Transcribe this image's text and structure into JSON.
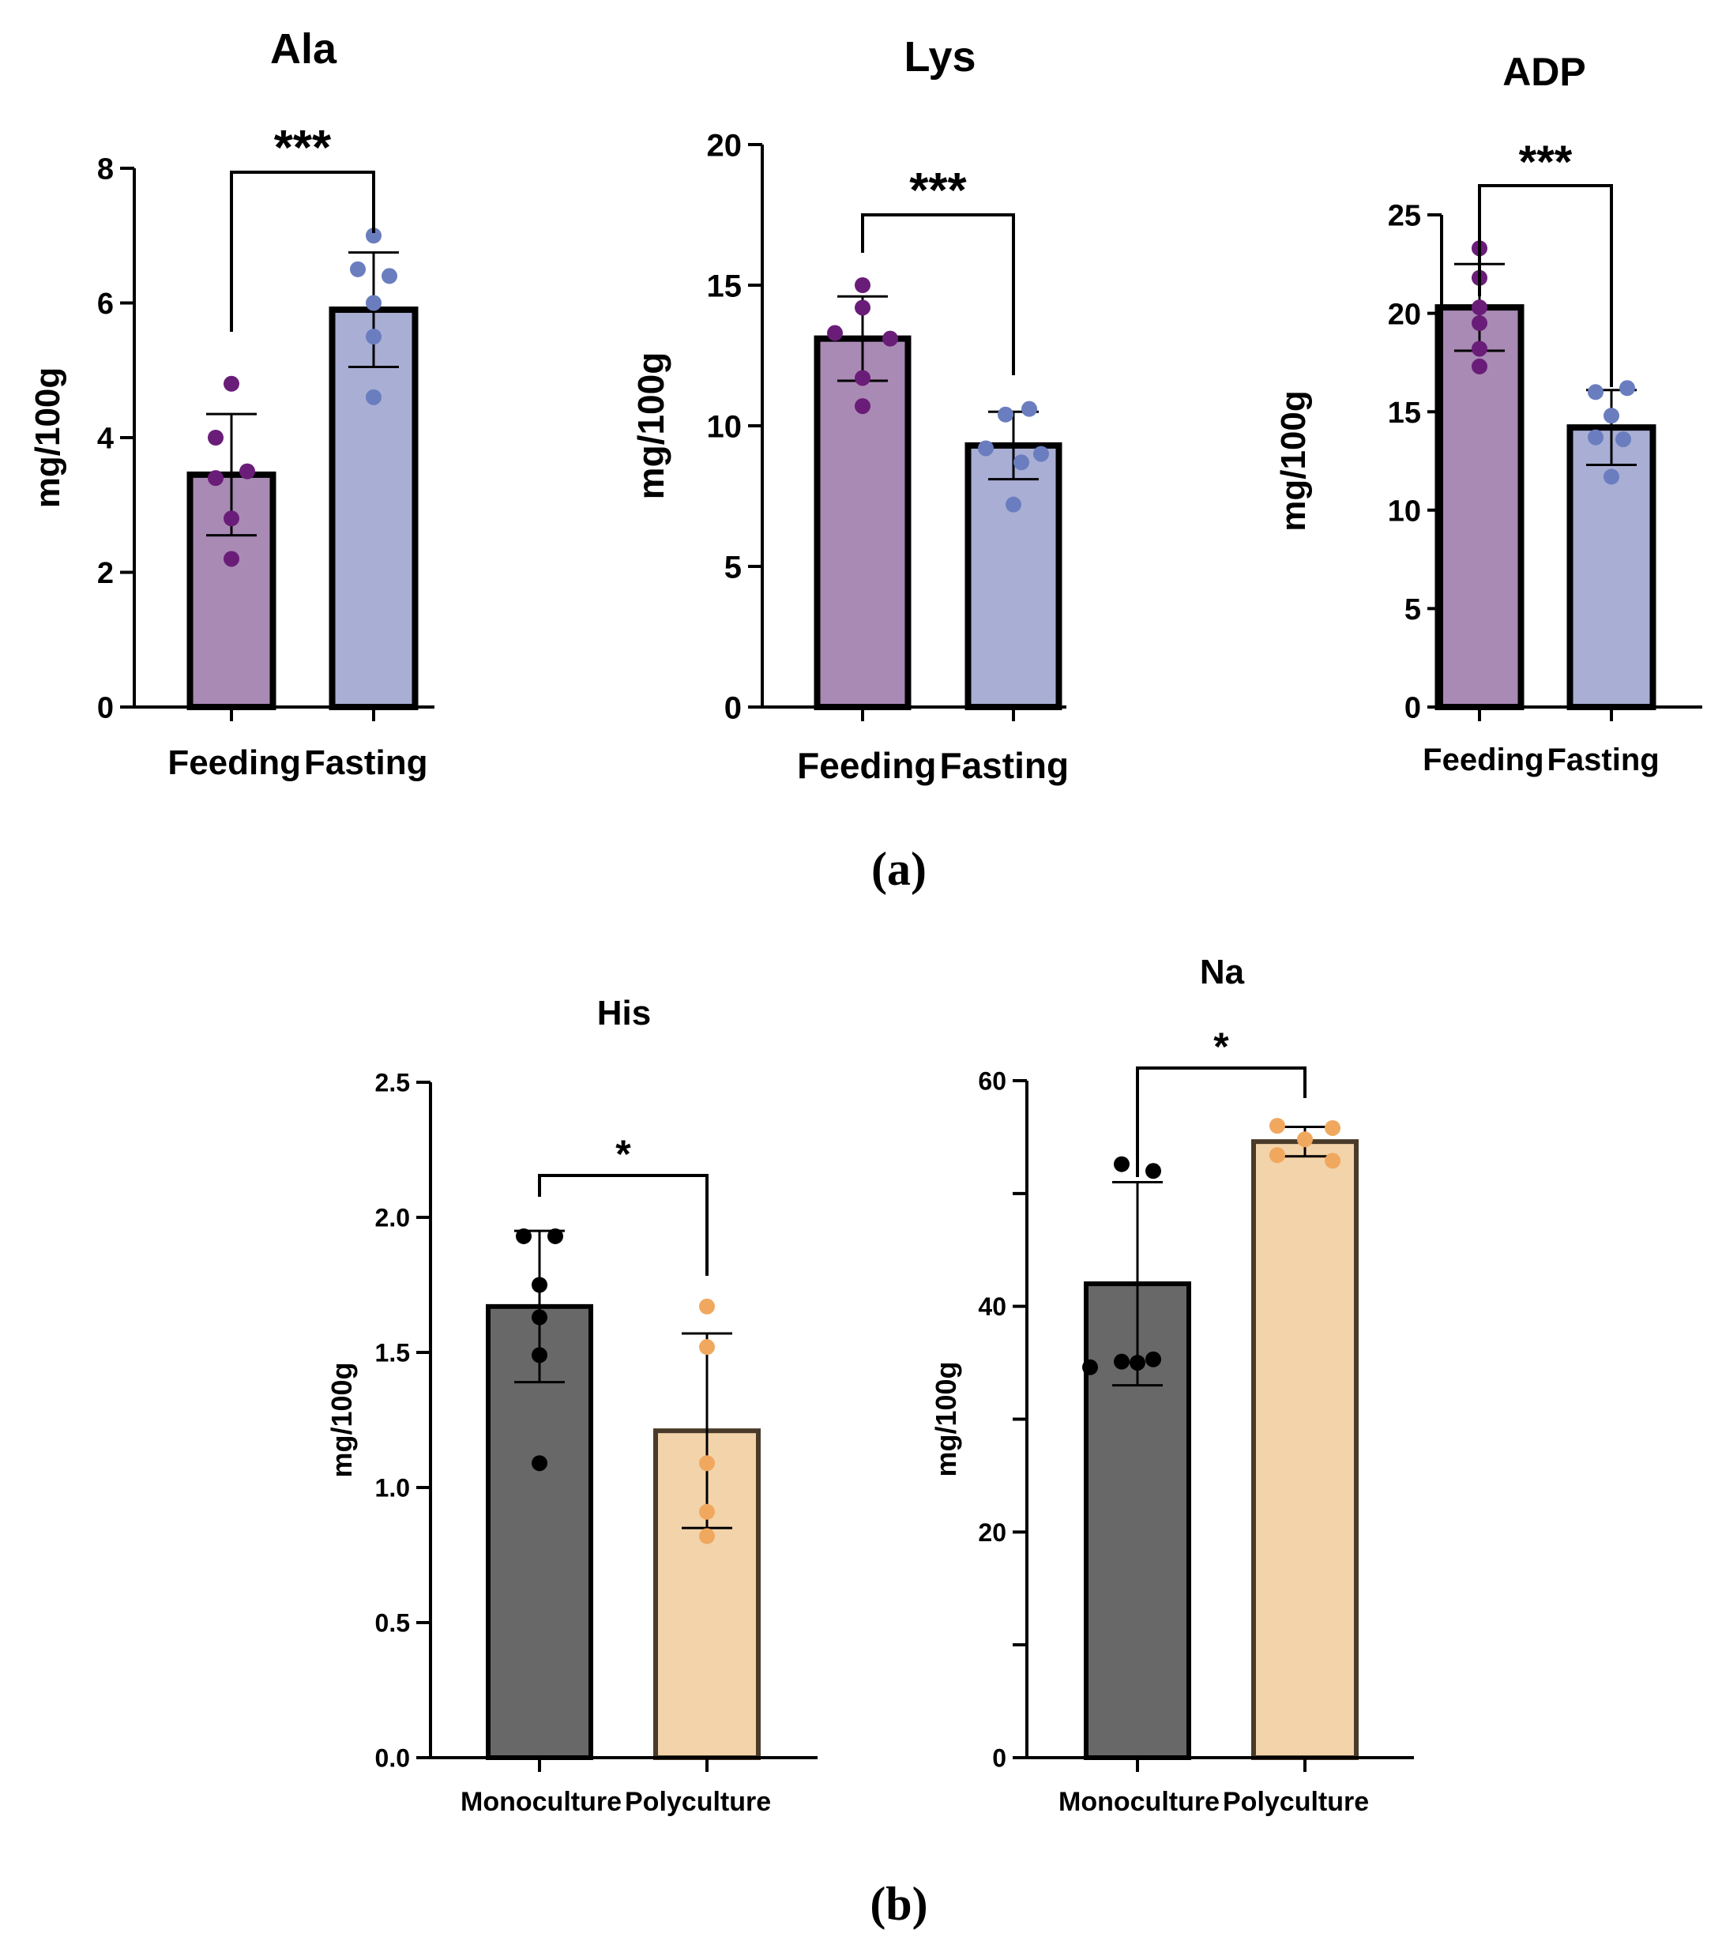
{
  "panels": [
    "(a)",
    "(b)"
  ],
  "chart_data": [
    {
      "type": "bar",
      "title": "Ala",
      "ylabel": "mg/100g",
      "categories": [
        "Feeding",
        "Fasting"
      ],
      "values": [
        3.45,
        5.9
      ],
      "errors": [
        0.9,
        0.85
      ],
      "points": [
        [
          4.8,
          4.0,
          3.5,
          3.4,
          2.8,
          2.2
        ],
        [
          7.0,
          6.5,
          6.4,
          6.0,
          5.5,
          4.6
        ]
      ],
      "colors": [
        "#a98ab4",
        "#a9aed4"
      ],
      "point_colors": [
        "#6a1d78",
        "#6a7dbf"
      ],
      "ylim": [
        0,
        8
      ],
      "ticks": [
        0,
        2,
        4,
        6,
        8
      ],
      "tick_labels": [
        "0",
        "2",
        "4",
        "6",
        "8"
      ],
      "significance": "***"
    },
    {
      "type": "bar",
      "title": "Lys",
      "ylabel": "mg/100g",
      "categories": [
        "Feeding",
        "Fasting"
      ],
      "values": [
        13.1,
        9.3
      ],
      "errors": [
        1.5,
        1.2
      ],
      "points": [
        [
          15.0,
          14.2,
          13.3,
          13.1,
          11.7,
          10.7
        ],
        [
          10.6,
          10.4,
          9.2,
          9.0,
          8.7,
          7.2
        ]
      ],
      "colors": [
        "#a98ab4",
        "#a9aed4"
      ],
      "point_colors": [
        "#6a1d78",
        "#6a7dbf"
      ],
      "ylim": [
        0,
        20
      ],
      "ticks": [
        0,
        5,
        10,
        15,
        20
      ],
      "tick_labels": [
        "0",
        "5",
        "10",
        "15",
        "20"
      ],
      "significance": "***"
    },
    {
      "type": "bar",
      "title": "ADP",
      "ylabel": "mg/100g",
      "categories": [
        "Feeding",
        "Fasting"
      ],
      "values": [
        20.3,
        14.2
      ],
      "errors": [
        2.2,
        1.9
      ],
      "points": [
        [
          23.3,
          21.8,
          20.3,
          19.5,
          18.2,
          17.3
        ],
        [
          16.2,
          16.0,
          14.8,
          13.7,
          13.6,
          11.7
        ]
      ],
      "colors": [
        "#a98ab4",
        "#a9aed4"
      ],
      "point_colors": [
        "#6a1d78",
        "#6a7dbf"
      ],
      "ylim": [
        0,
        25
      ],
      "ticks": [
        0,
        5,
        10,
        15,
        20,
        25
      ],
      "tick_labels": [
        "0",
        "5",
        "10",
        "15",
        "20",
        "25"
      ],
      "significance": "***"
    },
    {
      "type": "bar",
      "title": "His",
      "ylabel": "mg/100g",
      "categories": [
        "Monoculture",
        "Polyculture"
      ],
      "values": [
        1.67,
        1.21
      ],
      "errors": [
        0.28,
        0.36
      ],
      "points": [
        [
          1.93,
          1.93,
          1.75,
          1.63,
          1.49,
          1.09
        ],
        [
          1.67,
          1.52,
          1.09,
          0.91,
          0.82
        ]
      ],
      "colors": [
        "#686868",
        "#f2d3aa"
      ],
      "point_colors": [
        "#000000",
        "#f0a85f"
      ],
      "ylim": [
        0,
        2.5
      ],
      "ticks": [
        0,
        0.5,
        1.0,
        1.5,
        2.0,
        2.5
      ],
      "tick_labels": [
        "0.0",
        "0.5",
        "1.0",
        "1.5",
        "2.0",
        "2.5"
      ],
      "significance": "*"
    },
    {
      "type": "bar",
      "title": "Na",
      "ylabel": "mg/100g",
      "categories": [
        "Monoculture",
        "Polyculture"
      ],
      "values": [
        42.0,
        54.6
      ],
      "errors": [
        9.0,
        1.3
      ],
      "points": [
        [
          52.6,
          52.0,
          35.3,
          35.1,
          35.0,
          34.6
        ],
        [
          56.0,
          55.8,
          54.8,
          53.4,
          52.9
        ]
      ],
      "colors": [
        "#686868",
        "#f2d3aa"
      ],
      "point_colors": [
        "#000000",
        "#f0a85f"
      ],
      "ylim": [
        0,
        60
      ],
      "ticks": [
        0,
        10,
        20,
        30,
        40,
        50,
        60
      ],
      "tick_labels": [
        "0",
        "",
        "20",
        "",
        "40",
        "",
        "60"
      ],
      "significance": "*"
    }
  ]
}
